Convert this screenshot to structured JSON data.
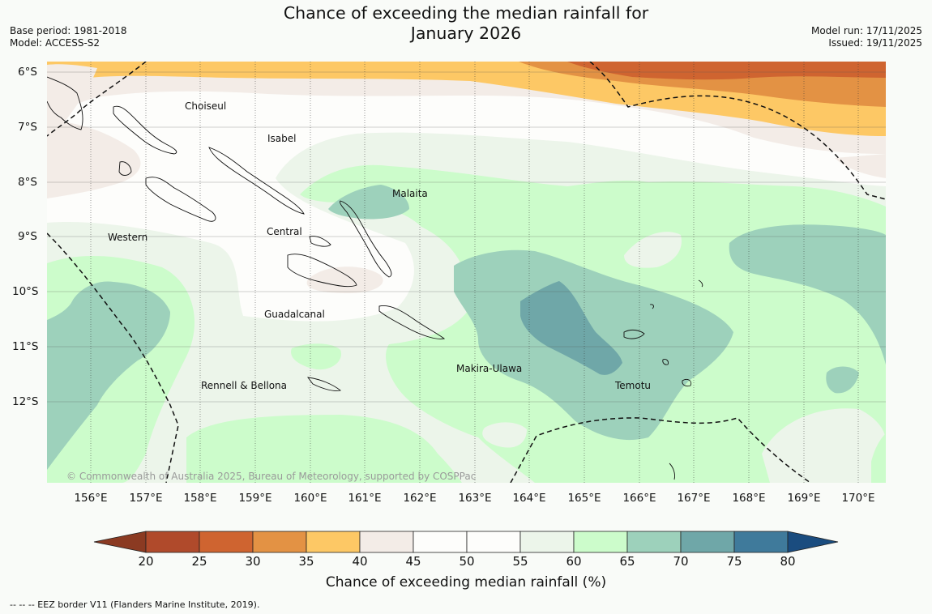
{
  "title": {
    "line1": "Chance of exceeding the median rainfall for",
    "line2": "January 2026"
  },
  "meta_left": {
    "base_period": "Base period: 1981-2018",
    "model": "Model: ACCESS-S2"
  },
  "meta_right": {
    "model_run": "Model run: 17/11/2025",
    "issued": "Issued: 19/11/2025"
  },
  "map": {
    "lat_labels": [
      "6°S",
      "7°S",
      "8°S",
      "9°S",
      "10°S",
      "11°S",
      "12°S"
    ],
    "lon_labels": [
      "156°E",
      "157°E",
      "158°E",
      "159°E",
      "160°E",
      "161°E",
      "162°E",
      "163°E",
      "164°E",
      "165°E",
      "166°E",
      "167°E",
      "168°E",
      "169°E",
      "170°E"
    ],
    "places": [
      {
        "name": "Choiseul"
      },
      {
        "name": "Isabel"
      },
      {
        "name": "Malaita"
      },
      {
        "name": "Central"
      },
      {
        "name": "Western"
      },
      {
        "name": "Guadalcanal"
      },
      {
        "name": "Makira-Ulawa"
      },
      {
        "name": "Rennell & Bellona"
      },
      {
        "name": "Temotu"
      }
    ],
    "copyright": "© Commonwealth of Australia 2025, Bureau of Meteorology, supported by COSPPac"
  },
  "colorbar": {
    "ticks": [
      "20",
      "25",
      "30",
      "35",
      "40",
      "45",
      "50",
      "55",
      "60",
      "65",
      "70",
      "75",
      "80"
    ],
    "colors": [
      "#b04a2b",
      "#cf6430",
      "#e39244",
      "#fdc865",
      "#f3ece7",
      "#fdfdfb",
      "#fdfdfb",
      "#ecf5ea",
      "#ccfccb",
      "#9dd1bb",
      "#6fa7a8",
      "#3f7a9b"
    ],
    "under_color": "#8b3a22",
    "over_color": "#1a4c7f",
    "label": "Chance of exceeding median rainfall (%)"
  },
  "footer": "--  --  -- EEZ border V11 (Flanders Marine Institute, 2019)."
}
